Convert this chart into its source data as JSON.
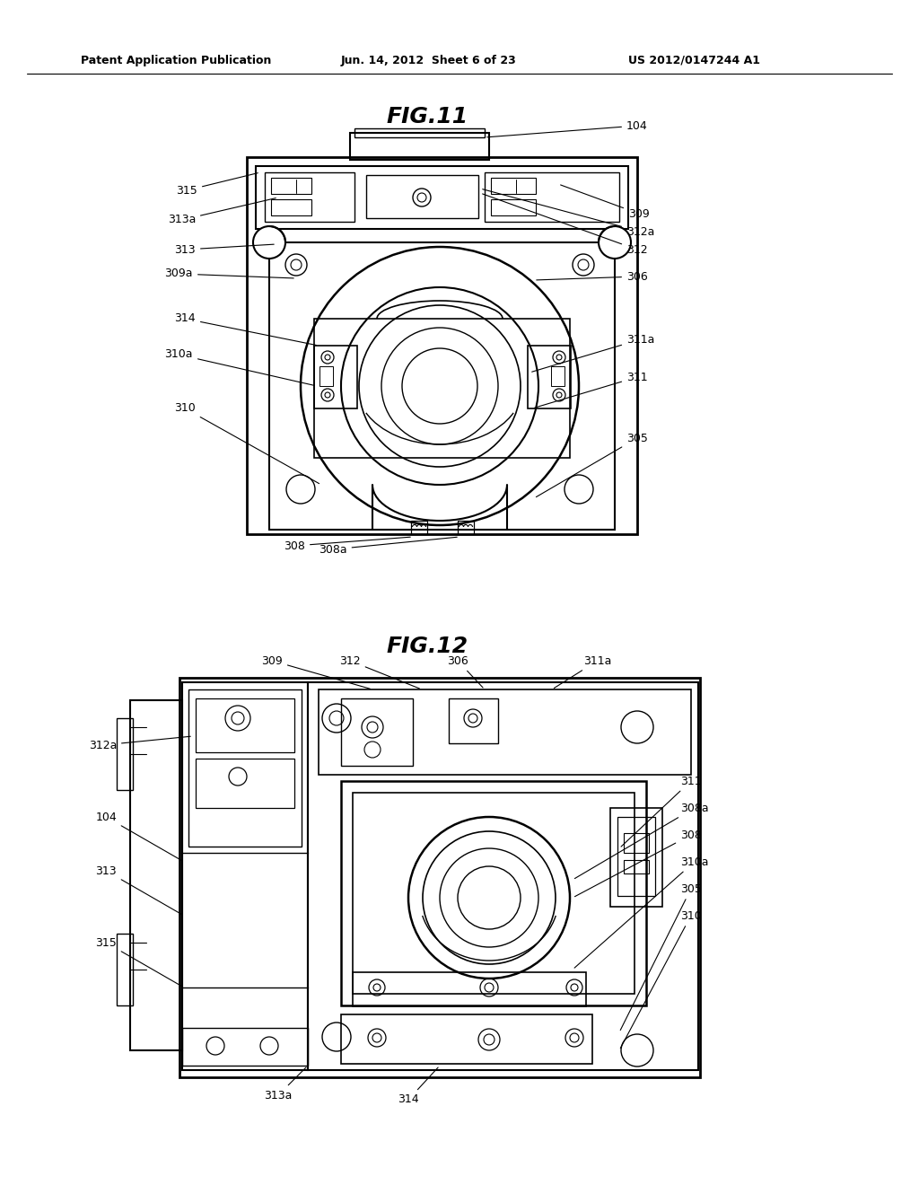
{
  "bg_color": "#ffffff",
  "header_left": "Patent Application Publication",
  "header_center": "Jun. 14, 2012  Sheet 6 of 23",
  "header_right": "US 2012/0147244 A1",
  "fig11_title": "FIG.11",
  "fig12_title": "FIG.12"
}
